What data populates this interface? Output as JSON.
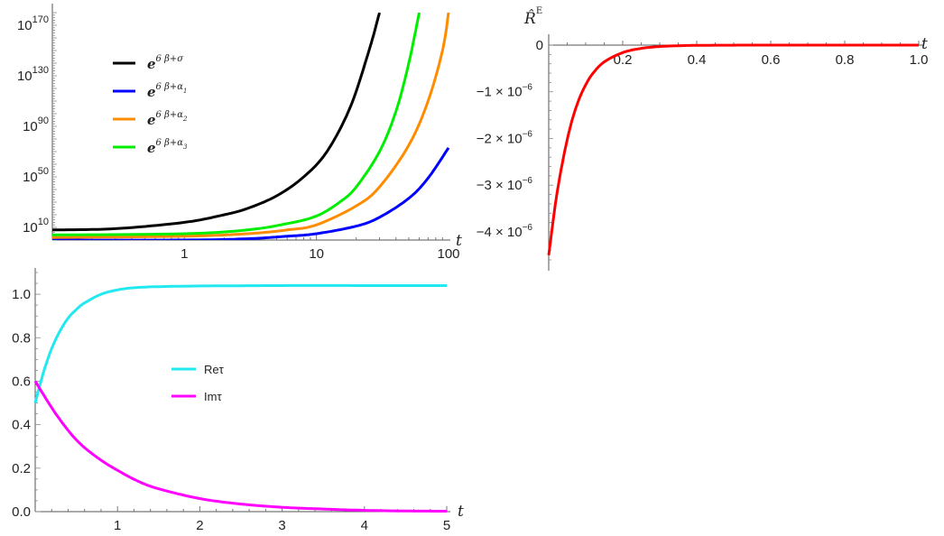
{
  "chart_data": [
    {
      "type": "line",
      "panel": "top-left",
      "scale": "log-log",
      "xlabel": "t",
      "ylabel": "",
      "xlim": [
        0.1,
        100
      ],
      "ylim_log10": [
        0,
        180
      ],
      "x_ticks": [
        {
          "value": 1,
          "label": "1"
        },
        {
          "value": 10,
          "label": "10"
        },
        {
          "value": 100,
          "label": "100"
        }
      ],
      "y_ticks": [
        {
          "log10": 10,
          "base": "10",
          "exp": "10"
        },
        {
          "log10": 50,
          "base": "10",
          "exp": "50"
        },
        {
          "log10": 90,
          "base": "10",
          "exp": "90"
        },
        {
          "log10": 130,
          "base": "10",
          "exp": "130"
        },
        {
          "log10": 170,
          "base": "10",
          "exp": "170"
        }
      ],
      "legend_position": "upper-left",
      "series": [
        {
          "name": "e^{6β+σ}",
          "legend_main": "e",
          "legend_sup": "6 β+σ",
          "legend_sub": "",
          "color": "#000000",
          "x": [
            0.1,
            0.3,
            1,
            2,
            3,
            5,
            8,
            12,
            18,
            25,
            30
          ],
          "log10_y": [
            8,
            9,
            14,
            20,
            25,
            35,
            50,
            70,
            105,
            150,
            180
          ]
        },
        {
          "name": "e^{6β+α1}",
          "legend_main": "e",
          "legend_sup": "6 β+α",
          "legend_sub": "1",
          "color": "#0000ff",
          "x": [
            0.1,
            1,
            3,
            6,
            10,
            20,
            30,
            50,
            70,
            100
          ],
          "log10_y": [
            0,
            0,
            1,
            3,
            5,
            11,
            18,
            33,
            49,
            73
          ]
        },
        {
          "name": "e^{6β+α2}",
          "legend_main": "e",
          "legend_sup": "6 β+α",
          "legend_sub": "2",
          "color": "#ff8c00",
          "x": [
            0.1,
            1,
            3,
            6,
            10,
            20,
            30,
            50,
            70,
            90,
            100
          ],
          "log10_y": [
            2,
            3,
            5,
            8,
            12,
            27,
            42,
            75,
            110,
            150,
            180
          ]
        },
        {
          "name": "e^{6β+α3}",
          "legend_main": "e",
          "legend_sup": "6 β+α",
          "legend_sub": "3",
          "color": "#00ee00",
          "x": [
            0.1,
            1,
            3,
            6,
            10,
            15,
            20,
            30,
            40,
            50,
            60
          ],
          "log10_y": [
            4,
            5,
            8,
            13,
            19,
            30,
            42,
            70,
            102,
            140,
            180
          ]
        }
      ]
    },
    {
      "type": "line",
      "panel": "top-right",
      "ylabel": "R̂",
      "ylabel_sup": "E",
      "xlabel": "t",
      "xlim": [
        0,
        1.0
      ],
      "ylim": [
        -4.6e-06,
        0
      ],
      "x_ticks": [
        {
          "value": 0.2,
          "label": "0.2"
        },
        {
          "value": 0.4,
          "label": "0.4"
        },
        {
          "value": 0.6,
          "label": "0.6"
        },
        {
          "value": 0.8,
          "label": "0.8"
        },
        {
          "value": 1.0,
          "label": "1.0"
        }
      ],
      "y_ticks": [
        {
          "value": 0,
          "label": "0",
          "sup": ""
        },
        {
          "value": -1e-06,
          "label": "−1 × 10",
          "sup": "−6"
        },
        {
          "value": -2e-06,
          "label": "−2 × 10",
          "sup": "−6"
        },
        {
          "value": -3e-06,
          "label": "−3 × 10",
          "sup": "−6"
        },
        {
          "value": -4e-06,
          "label": "−4 × 10",
          "sup": "−6"
        }
      ],
      "series": [
        {
          "color": "#ff0000",
          "x": [
            0,
            0.02,
            0.04,
            0.06,
            0.08,
            0.1,
            0.12,
            0.15,
            0.2,
            0.25,
            0.3,
            0.35,
            0.4,
            0.5,
            0.6,
            0.8,
            1.0
          ],
          "y": [
            -4.5e-06,
            -3.3e-06,
            -2.4e-06,
            -1.7e-06,
            -1.2e-06,
            -8.5e-07,
            -6e-07,
            -3.6e-07,
            -1.6e-07,
            -7e-08,
            -3e-08,
            -1.3e-08,
            -5e-09,
            -1e-09,
            0,
            0,
            0
          ]
        }
      ]
    },
    {
      "type": "line",
      "panel": "bottom-left",
      "xlabel": "t",
      "ylabel": "",
      "xlim": [
        0,
        5
      ],
      "ylim": [
        0,
        1.1
      ],
      "x_ticks": [
        {
          "value": 1,
          "label": "1"
        },
        {
          "value": 2,
          "label": "2"
        },
        {
          "value": 3,
          "label": "3"
        },
        {
          "value": 4,
          "label": "4"
        },
        {
          "value": 5,
          "label": "5"
        }
      ],
      "y_ticks": [
        {
          "value": 0.0,
          "label": "0.0"
        },
        {
          "value": 0.2,
          "label": "0.2"
        },
        {
          "value": 0.4,
          "label": "0.4"
        },
        {
          "value": 0.6,
          "label": "0.6"
        },
        {
          "value": 0.8,
          "label": "0.8"
        },
        {
          "value": 1.0,
          "label": "1.0"
        }
      ],
      "legend_position": "center",
      "series": [
        {
          "name": "Reτ",
          "color": "#22e8f0",
          "x": [
            0,
            0.1,
            0.2,
            0.3,
            0.4,
            0.5,
            0.6,
            0.8,
            1.0,
            1.2,
            1.5,
            2.0,
            3.0,
            4.0,
            5.0
          ],
          "y": [
            0.5,
            0.64,
            0.75,
            0.83,
            0.89,
            0.93,
            0.96,
            1.0,
            1.02,
            1.03,
            1.035,
            1.038,
            1.04,
            1.04,
            1.04
          ]
        },
        {
          "name": "Imτ",
          "color": "#ff00ff",
          "x": [
            0,
            0.25,
            0.5,
            0.75,
            1.0,
            1.25,
            1.5,
            2.0,
            2.5,
            3.0,
            3.5,
            4.0,
            4.5,
            5.0
          ],
          "y": [
            0.6,
            0.45,
            0.33,
            0.25,
            0.19,
            0.14,
            0.105,
            0.06,
            0.035,
            0.02,
            0.012,
            0.006,
            0.003,
            0.002
          ]
        }
      ]
    }
  ]
}
